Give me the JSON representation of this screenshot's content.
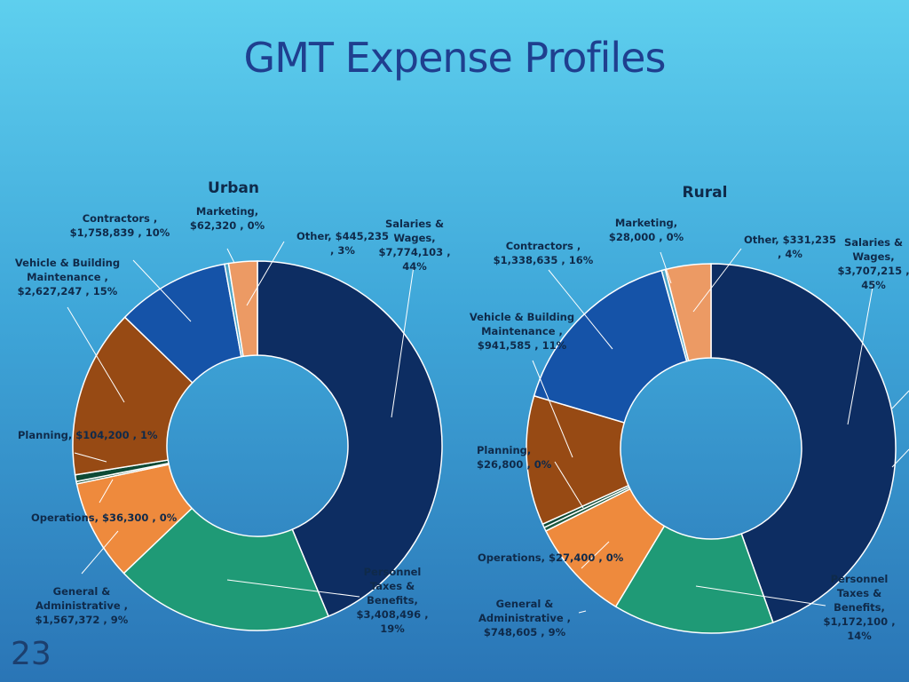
{
  "slide": {
    "title": "GMT Expense Profiles",
    "page_number": "23"
  },
  "chart_data": [
    {
      "type": "donut",
      "title": "Urban",
      "categories": [
        "Salaries & Wages",
        "Personnel Taxes & Benefits",
        "General & Administrative",
        "Operations",
        "Planning",
        "Vehicle & Building Maintenance",
        "Contractors",
        "Marketing",
        "Other"
      ],
      "values": [
        7774103,
        3408496,
        1567372,
        36300,
        104200,
        2627247,
        1758839,
        62320,
        445235
      ],
      "percents": [
        44,
        19,
        9,
        0,
        1,
        15,
        10,
        0,
        3
      ],
      "colors": [
        "#0d2d62",
        "#1f9a76",
        "#ee8a3d",
        "#1c5a3f",
        "#0d4a35",
        "#974a14",
        "#1553a8",
        "#4ea6c8",
        "#ec9a64"
      ],
      "data_labels": [
        [
          "Salaries &",
          "Wages,",
          "$7,774,103 ,",
          "44%"
        ],
        [
          "Personnel",
          "Taxes &",
          "Benefits,",
          "$3,408,496 ,",
          "19%"
        ],
        [
          "General &",
          "Administrative ,",
          "$1,567,372 , 9%"
        ],
        [
          "Operations, $36,300 , 0%"
        ],
        [
          "Planning, $104,200 , 1%"
        ],
        [
          "Vehicle & Building",
          "Maintenance ,",
          "$2,627,247 , 15%"
        ],
        [
          "Contractors ,",
          "$1,758,839 , 10%"
        ],
        [
          "Marketing,",
          "$62,320 , 0%"
        ],
        [
          "Other, $445,235",
          ", 3%"
        ]
      ]
    },
    {
      "type": "donut",
      "title": "Rural",
      "categories": [
        "Salaries & Wages",
        "Personnel Taxes & Benefits",
        "General & Administrative",
        "Operations",
        "Planning",
        "Vehicle & Building Maintenance",
        "Contractors",
        "Marketing",
        "Other"
      ],
      "values": [
        3707215,
        1172100,
        748605,
        27400,
        26800,
        941585,
        1338635,
        28000,
        331235
      ],
      "percents": [
        45,
        14,
        9,
        0,
        0,
        11,
        16,
        0,
        4
      ],
      "colors": [
        "#0d2d62",
        "#1f9a76",
        "#ee8a3d",
        "#1c5a3f",
        "#0d4a35",
        "#974a14",
        "#1553a8",
        "#4ea6c8",
        "#ec9a64"
      ],
      "data_labels": [
        [
          "Salaries &",
          "Wages,",
          "$3,707,215 ,",
          "45%"
        ],
        [
          "Personnel",
          "Taxes &",
          "Benefits,",
          "$1,172,100 ,",
          "14%"
        ],
        [
          "General &",
          "Administrative ,",
          "$748,605 , 9%"
        ],
        [
          "Operations, $27,400 , 0%"
        ],
        [
          "Planning,",
          "$26,800 , 0%"
        ],
        [
          "Vehicle & Building",
          "Maintenance ,",
          "$941,585 , 11%"
        ],
        [
          "Contractors ,",
          "$1,338,635 , 16%"
        ],
        [
          "Marketing,",
          "$28,000 , 0%"
        ],
        [
          "Other, $331,235",
          ", 4%"
        ]
      ]
    }
  ]
}
